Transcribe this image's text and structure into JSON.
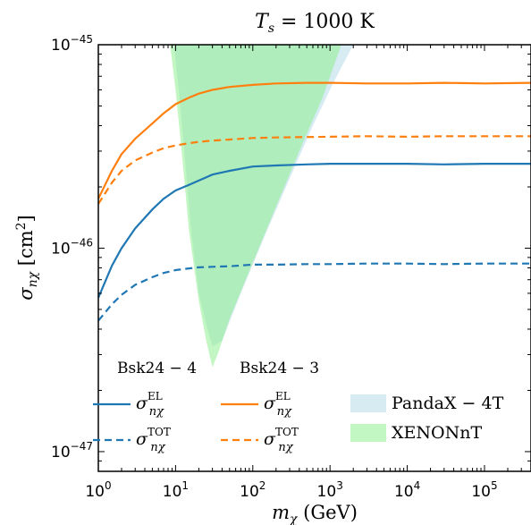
{
  "chart_data": {
    "type": "line",
    "title": "T_s = 1000 K",
    "title_parts": {
      "var": "T",
      "sub": "s",
      "rest": " = 1000 K"
    },
    "xlabel": "m_χ (GeV)",
    "xlabel_parts": {
      "var": "m",
      "sub": "χ",
      "rest": " (GeV)"
    },
    "ylabel": "σ_nχ [cm²]",
    "ylabel_parts": {
      "var": "σ",
      "sub": "nχ",
      "rest": " [cm",
      "sup": "2",
      "end": "]"
    },
    "xscale": "log",
    "yscale": "log",
    "xlim": [
      1,
      400000
    ],
    "ylim": [
      8e-48,
      1e-45
    ],
    "x_ticks": [
      {
        "value": 1,
        "mant": "10",
        "exp": "0"
      },
      {
        "value": 10,
        "mant": "10",
        "exp": "1"
      },
      {
        "value": 100,
        "mant": "10",
        "exp": "2"
      },
      {
        "value": 1000,
        "mant": "10",
        "exp": "3"
      },
      {
        "value": 10000,
        "mant": "10",
        "exp": "4"
      },
      {
        "value": 100000,
        "mant": "10",
        "exp": "5"
      }
    ],
    "y_ticks": [
      {
        "value": 1e-47,
        "mant": "10",
        "exp": "−47"
      },
      {
        "value": 1e-46,
        "mant": "10",
        "exp": "−46"
      },
      {
        "value": 1e-45,
        "mant": "10",
        "exp": "−45"
      }
    ],
    "grid": false,
    "legend_position": "bottom",
    "legend_groups": [
      "Bsk24 − 4",
      "Bsk24 − 3"
    ],
    "series": [
      {
        "name": "σ_nχ^EL",
        "label_var": "σ",
        "label_sub": "nχ",
        "label_sup": "EL",
        "group": "Bsk24 − 4",
        "color": "#1f77b4",
        "dash": "solid",
        "x": [
          1,
          1.5,
          2,
          3,
          5,
          7,
          10,
          15,
          20,
          30,
          50,
          100,
          200,
          500,
          1000,
          3000,
          10000,
          30000,
          100000,
          400000
        ],
        "y": [
          5.7e-47,
          8.2e-47,
          1e-46,
          1.25e-46,
          1.55e-46,
          1.75e-46,
          1.92e-46,
          2.05e-46,
          2.15e-46,
          2.3e-46,
          2.4e-46,
          2.52e-46,
          2.55e-46,
          2.58e-46,
          2.6e-46,
          2.6e-46,
          2.6e-46,
          2.58e-46,
          2.6e-46,
          2.6e-46
        ]
      },
      {
        "name": "σ_nχ^TOT",
        "label_var": "σ",
        "label_sub": "nχ",
        "label_sup": "TOT",
        "group": "Bsk24 − 4",
        "color": "#1f77b4",
        "dash": "dashed",
        "x": [
          1,
          1.5,
          2,
          3,
          5,
          7,
          10,
          15,
          20,
          30,
          50,
          100,
          200,
          500,
          1000,
          3000,
          10000,
          30000,
          100000,
          400000
        ],
        "y": [
          4.4e-47,
          5.3e-47,
          5.9e-47,
          6.6e-47,
          7.2e-47,
          7.55e-47,
          7.8e-47,
          7.95e-47,
          8.05e-47,
          8.1e-47,
          8.15e-47,
          8.3e-47,
          8.3e-47,
          8.35e-47,
          8.35e-47,
          8.4e-47,
          8.4e-47,
          8.35e-47,
          8.4e-47,
          8.4e-47
        ]
      },
      {
        "name": "σ_nχ^EL",
        "label_var": "σ",
        "label_sub": "nχ",
        "label_sup": "EL",
        "group": "Bsk24 − 3",
        "color": "#ff7f0e",
        "dash": "solid",
        "x": [
          1,
          1.5,
          2,
          3,
          5,
          7,
          10,
          15,
          20,
          30,
          50,
          100,
          200,
          500,
          1000,
          3000,
          10000,
          30000,
          100000,
          400000
        ],
        "y": [
          1.75e-46,
          2.4e-46,
          2.9e-46,
          3.45e-46,
          4.1e-46,
          4.6e-46,
          5.1e-46,
          5.5e-46,
          5.75e-46,
          6e-46,
          6.2e-46,
          6.35e-46,
          6.45e-46,
          6.5e-46,
          6.5e-46,
          6.45e-46,
          6.45e-46,
          6.5e-46,
          6.45e-46,
          6.5e-46
        ]
      },
      {
        "name": "σ_nχ^TOT",
        "label_var": "σ",
        "label_sub": "nχ",
        "label_sup": "TOT",
        "group": "Bsk24 − 3",
        "color": "#ff7f0e",
        "dash": "dashed",
        "x": [
          1,
          1.5,
          2,
          3,
          5,
          7,
          10,
          15,
          20,
          30,
          50,
          100,
          200,
          500,
          1000,
          3000,
          10000,
          30000,
          100000,
          400000
        ],
        "y": [
          1.65e-46,
          2.1e-46,
          2.4e-46,
          2.7e-46,
          2.95e-46,
          3.1e-46,
          3.2e-46,
          3.28e-46,
          3.33e-46,
          3.38e-46,
          3.42e-46,
          3.48e-46,
          3.5e-46,
          3.52e-46,
          3.53e-46,
          3.55e-46,
          3.53e-46,
          3.55e-46,
          3.55e-46,
          3.55e-46
        ]
      }
    ],
    "regions": [
      {
        "name": "PandaX − 4T",
        "color": "#add8e6",
        "alpha": 0.5,
        "left": {
          "x": [
            9.5,
            11,
            13,
            16,
            20,
            25,
            30
          ],
          "y": [
            1e-45,
            6e-46,
            3e-46,
            1.2e-46,
            6e-47,
            4.2e-47,
            3.3e-47
          ]
        },
        "right": {
          "x": [
            30,
            40,
            70,
            150,
            300,
            600,
            1100,
            2000
          ],
          "y": [
            3.3e-47,
            3.5e-47,
            6e-47,
            1.2e-46,
            2.2e-46,
            4e-46,
            6.5e-46,
            1e-45
          ]
        }
      },
      {
        "name": "XENONnT",
        "color": "#90ee90",
        "alpha": 0.55,
        "left": {
          "x": [
            8.5,
            10,
            12,
            15,
            20,
            25,
            30
          ],
          "y": [
            1e-45,
            6e-46,
            3e-46,
            1.2e-46,
            5.5e-47,
            3.5e-47,
            2.6e-47
          ]
        },
        "right": {
          "x": [
            30,
            35,
            50,
            100,
            200,
            400,
            800,
            1400
          ],
          "y": [
            2.6e-47,
            3e-47,
            4.5e-47,
            8.5e-47,
            1.6e-46,
            3e-46,
            5.5e-46,
            1e-45
          ]
        }
      }
    ]
  }
}
